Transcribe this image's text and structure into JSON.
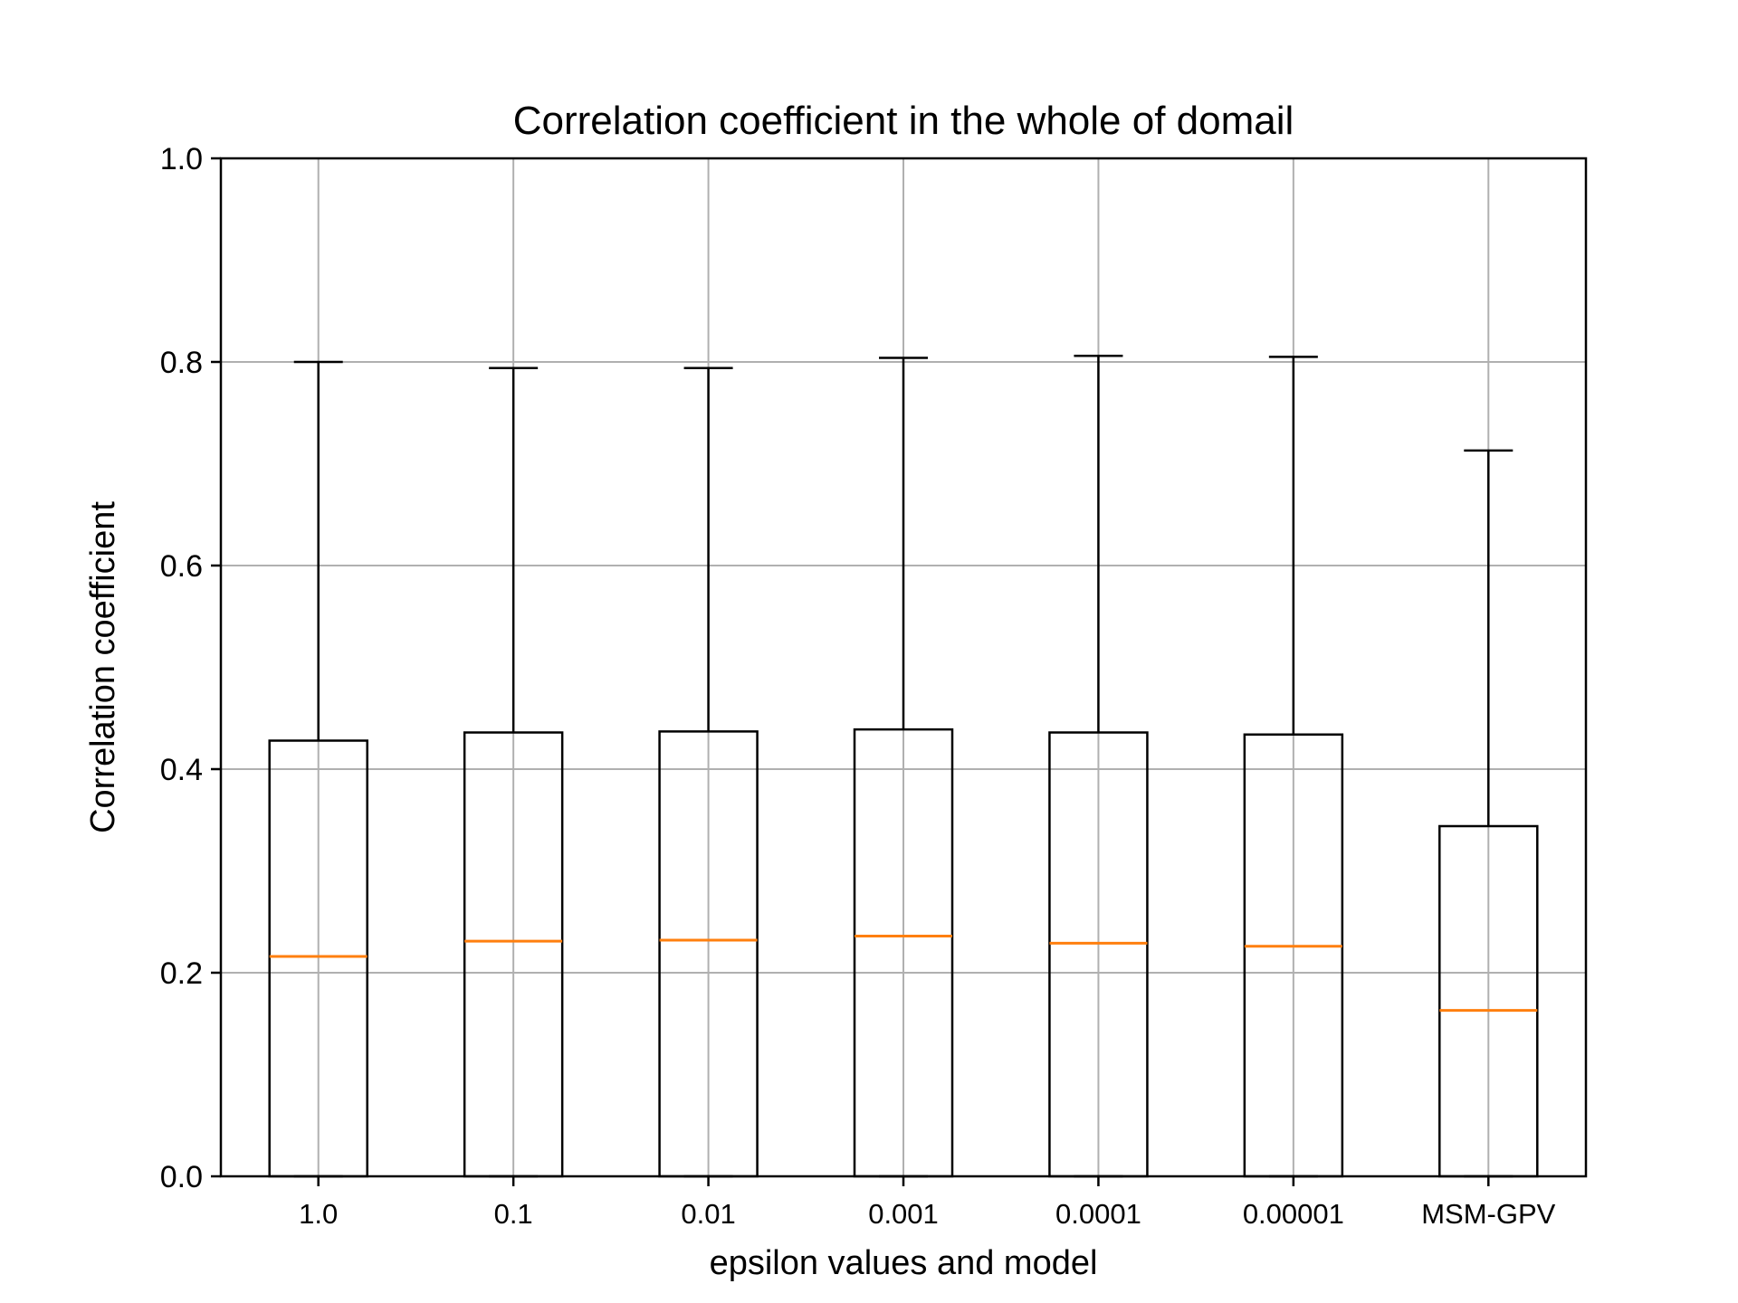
{
  "chart_data": {
    "type": "box",
    "title": "Correlation coefficient in the whole of domail",
    "xlabel": "epsilon values and model",
    "ylabel": "Correlation coefficient",
    "ylim": [
      0.0,
      1.0
    ],
    "yticks": [
      "0.0",
      "0.2",
      "0.4",
      "0.6",
      "0.8",
      "1.0"
    ],
    "grid": true,
    "categories": [
      "1.0",
      "0.1",
      "0.01",
      "0.001",
      "0.0001",
      "0.00001",
      "MSM-GPV"
    ],
    "boxes": [
      {
        "category": "1.0",
        "whisker_low": 0.0,
        "q1": 0.0,
        "median": 0.216,
        "q3": 0.428,
        "whisker_high": 0.8
      },
      {
        "category": "0.1",
        "whisker_low": 0.0,
        "q1": 0.0,
        "median": 0.231,
        "q3": 0.436,
        "whisker_high": 0.794
      },
      {
        "category": "0.01",
        "whisker_low": 0.0,
        "q1": 0.0,
        "median": 0.232,
        "q3": 0.437,
        "whisker_high": 0.794
      },
      {
        "category": "0.001",
        "whisker_low": 0.0,
        "q1": 0.0,
        "median": 0.236,
        "q3": 0.439,
        "whisker_high": 0.804
      },
      {
        "category": "0.0001",
        "whisker_low": 0.0,
        "q1": 0.0,
        "median": 0.229,
        "q3": 0.436,
        "whisker_high": 0.806
      },
      {
        "category": "0.00001",
        "whisker_low": 0.0,
        "q1": 0.0,
        "median": 0.226,
        "q3": 0.434,
        "whisker_high": 0.805
      },
      {
        "category": "MSM-GPV",
        "whisker_low": 0.0,
        "q1": 0.0,
        "median": 0.163,
        "q3": 0.344,
        "whisker_high": 0.713
      }
    ],
    "colors": {
      "box": "#000000",
      "median": "#ff7f0e",
      "grid": "#b0b0b0"
    }
  }
}
